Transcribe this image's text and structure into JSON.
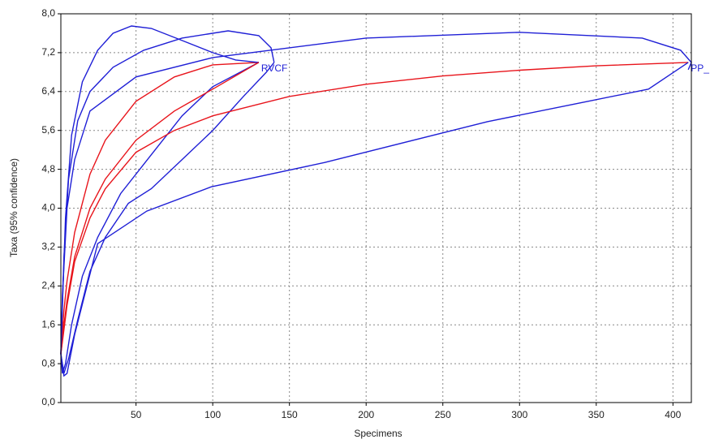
{
  "chart_data": {
    "type": "line",
    "xlabel": "Specimens",
    "ylabel": "Taxa (95% confidence)",
    "xlim": [
      1,
      412
    ],
    "ylim": [
      0,
      8
    ],
    "xticks": [
      50,
      100,
      150,
      200,
      250,
      300,
      350,
      400
    ],
    "yticks": [
      {
        "value": 0,
        "label": "0,0"
      },
      {
        "value": 0.8,
        "label": "0,8"
      },
      {
        "value": 1.6,
        "label": "1,6"
      },
      {
        "value": 2.4,
        "label": "2,4"
      },
      {
        "value": 3.2,
        "label": "3,2"
      },
      {
        "value": 4,
        "label": "4,0"
      },
      {
        "value": 4.8,
        "label": "4,8"
      },
      {
        "value": 5.6,
        "label": "5,6"
      },
      {
        "value": 6.4,
        "label": "6,4"
      },
      {
        "value": 7.2,
        "label": "7,2"
      },
      {
        "value": 8,
        "label": "8,0"
      }
    ],
    "grid": true,
    "series": [
      {
        "color": "#e8141b",
        "x": [
          1,
          3,
          5,
          10,
          20,
          30,
          50,
          75,
          100,
          130
        ],
        "values": [
          1,
          1.9,
          2.5,
          3.5,
          4.7,
          5.4,
          6.2,
          6.7,
          6.95,
          7.0
        ]
      },
      {
        "color": "#1f1fd6",
        "x": [
          1,
          2,
          4,
          8,
          15,
          25,
          35,
          47,
          60,
          80,
          100,
          115,
          130
        ],
        "values": [
          1,
          2,
          3.8,
          5.5,
          6.6,
          7.25,
          7.6,
          7.75,
          7.7,
          7.45,
          7.2,
          7.05,
          7.0
        ]
      },
      {
        "color": "#1f1fd6",
        "x": [
          1,
          2,
          4,
          8,
          15,
          25,
          40,
          60,
          80,
          100,
          130
        ],
        "values": [
          1,
          0.6,
          0.8,
          1.6,
          2.6,
          3.4,
          4.3,
          5.1,
          5.9,
          6.5,
          7.0
        ]
      },
      {
        "color": "#e8141b",
        "x": [
          1,
          3,
          5,
          10,
          20,
          30,
          50,
          75,
          100,
          130
        ],
        "values": [
          1,
          1.6,
          2.1,
          3.0,
          4.0,
          4.6,
          5.4,
          6.0,
          6.45,
          7.0
        ],
        "label": "RVCF"
      },
      {
        "color": "#1f1fd6",
        "x": [
          1,
          3,
          6,
          12,
          20,
          35,
          55,
          80,
          110,
          130,
          138,
          140
        ],
        "values": [
          1,
          3.0,
          4.6,
          5.8,
          6.4,
          6.9,
          7.25,
          7.5,
          7.65,
          7.55,
          7.3,
          7.0
        ]
      },
      {
        "color": "#1f1fd6",
        "x": [
          1,
          3,
          6,
          12,
          20,
          30,
          45,
          60,
          80,
          100,
          120,
          135,
          140
        ],
        "values": [
          1,
          0.6,
          0.9,
          1.7,
          2.7,
          3.4,
          4.1,
          4.4,
          5.0,
          5.6,
          6.3,
          6.8,
          7.0
        ]
      },
      {
        "color": "#e8141b",
        "x": [
          1,
          5,
          10,
          20,
          30,
          50,
          75,
          100,
          150,
          200,
          250,
          300,
          350,
          410
        ],
        "values": [
          1,
          2.0,
          2.9,
          3.8,
          4.4,
          5.15,
          5.6,
          5.9,
          6.3,
          6.55,
          6.72,
          6.84,
          6.93,
          7.0
        ],
        "label": "PP_"
      },
      {
        "color": "#1f1fd6",
        "x": [
          1,
          2,
          5,
          10,
          20,
          50,
          100,
          200,
          300,
          380,
          405,
          412,
          410
        ],
        "values": [
          1,
          2.2,
          4.0,
          5.0,
          6.0,
          6.7,
          7.1,
          7.5,
          7.62,
          7.5,
          7.25,
          7.0,
          6.85
        ]
      },
      {
        "color": "#1f1fd6",
        "x": [
          1,
          3,
          5,
          10,
          25,
          57,
          99,
          173,
          279,
          384,
          410
        ],
        "values": [
          1,
          0.55,
          0.6,
          1.4,
          3.27,
          3.94,
          4.44,
          4.94,
          5.78,
          6.45,
          7.0
        ]
      }
    ]
  }
}
